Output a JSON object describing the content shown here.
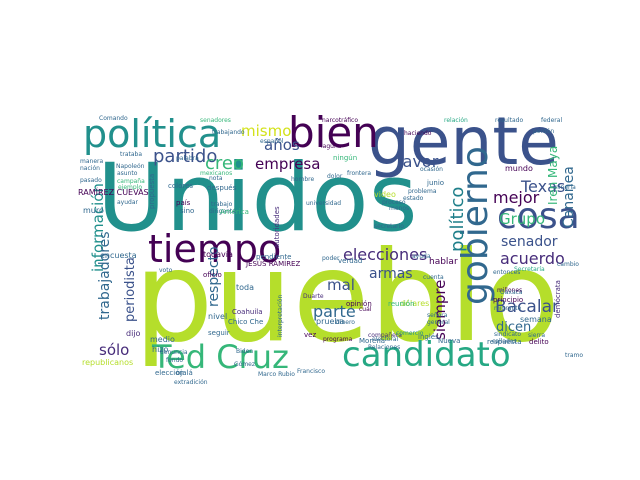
{
  "palette": {
    "teal": "#21908c",
    "deep_teal": "#1f7f8a",
    "lime": "#b5de2b",
    "green": "#35b779",
    "navy": "#3b528b",
    "purple": "#440154",
    "indigo": "#472c7a",
    "blue": "#31688e",
    "seafoam": "#26a884",
    "yellow": "#d3e21b"
  },
  "words": [
    "pueblo",
    "Unidos",
    "gente",
    "bien",
    "política",
    "tiempo",
    "cosa",
    "gobierno",
    "Ted Cruz",
    "candidato",
    "partido",
    "mismo",
    "años",
    "creo",
    "empresa",
    "favor",
    "mejor",
    "Grupo",
    "Texas",
    "Cananea",
    "Iren Maya",
    "político",
    "elecciones",
    "senador",
    "acuerdo",
    "armas",
    "Bacalar",
    "dicen",
    "parte",
    "siempre",
    "respecto",
    "mal",
    "información",
    "trabajadores",
    "periodista",
    "sólo",
    "RAMÍREZ CUEVAS",
    "JESÚS RAMÍREZ",
    "narcotráfico",
    "relación",
    "resultado",
    "senadores",
    "trabajando",
    "haciendo",
    "laguna",
    "colores",
    "propuesta",
    "después",
    "país",
    "trabajo",
    "dirigente",
    "América",
    "todavía",
    "pendiente",
    "autoridades",
    "prueba",
    "opinión",
    "verdad",
    "hablar",
    "mundo",
    "junio",
    "ningún",
    "video",
    "respuesta",
    "delito",
    "elección",
    "medio",
    "hizo",
    "dólares",
    "reunión",
    "compañera",
    "millones",
    "principio",
    "migrante",
    "semana",
    "demócrata",
    "extradición",
    "republicanos",
    "dijo",
    "Morena",
    "programa",
    "vez",
    "seguir",
    "nivel",
    "toda",
    "oficio",
    "Duarte",
    "cuál",
    "Chico Che",
    "Coahuila",
    "Biden",
    "Gómez",
    "Marco Rubio",
    "Francisco",
    "Nueva",
    "interpretación",
    "encuesta",
    "sino",
    "voto",
    "dinero",
    "comercio",
    "Oaxaca",
    "Comando",
    "asunto",
    "Napoleón",
    "trataba",
    "campaña",
    "ejemplo",
    "pasado",
    "manera",
    "nación",
    "muro",
    "ayudar",
    "palabra",
    "nota",
    "mexicanos",
    "español",
    "hombre",
    "poder",
    "inglés",
    "Secretaría",
    "general",
    "señora",
    "cambio",
    "entonces",
    "sindicato",
    "callados",
    "perdón",
    "federal",
    "ocasión",
    "ayuda",
    "cuenta",
    "tramo",
    "ojalá",
    "denuncia",
    "fondo",
    "frontera",
    "electoral",
    "Relaciones",
    "secretario",
    "problema",
    "proceso",
    "menos",
    "dolor",
    "estado",
    "minería",
    "sierra",
    "universidad"
  ]
}
